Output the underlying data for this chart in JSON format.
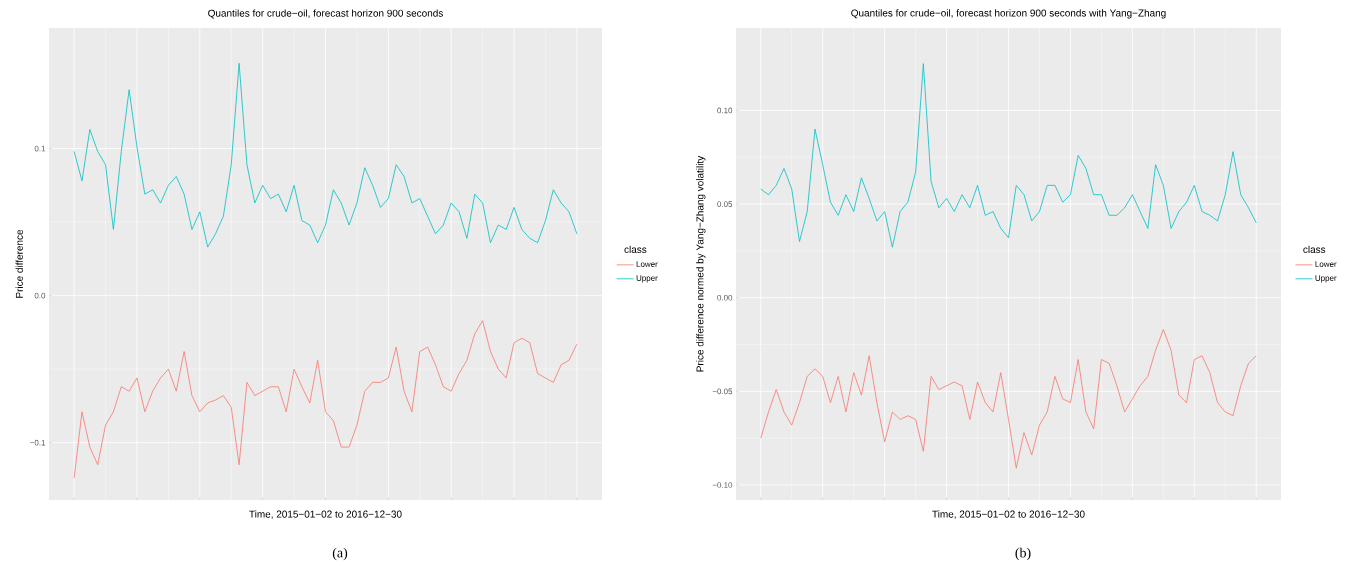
{
  "chart_data": [
    {
      "type": "line",
      "title": "Quantiles for crude−oil, forecast horizon 900 seconds",
      "xlabel": "Time, 2015−01−02 to 2016−12−30",
      "ylabel": "Price difference",
      "legend_title": "class",
      "legend": "right",
      "grid": true,
      "tick_labels": "y",
      "annotations": [
        "(a)"
      ],
      "categories": [
        null,
        null,
        null,
        null,
        null,
        null,
        null,
        null,
        null,
        null,
        null,
        null,
        null,
        null,
        null,
        null,
        null,
        null,
        null,
        null,
        null,
        null,
        null,
        null,
        null,
        null,
        null,
        null,
        null,
        null,
        null,
        null,
        null,
        null,
        null,
        null,
        null,
        null,
        null,
        null,
        null,
        null,
        null,
        null,
        null,
        null,
        null,
        null,
        null,
        null,
        null,
        null,
        null,
        null,
        null,
        null,
        null,
        null,
        null,
        null,
        null,
        null,
        null,
        null,
        null
      ],
      "ylim": [
        -0.139,
        0.182
      ],
      "yticks": [
        {
          "value": -0.1,
          "label": "−0.1"
        },
        {
          "value": 0,
          "label": "0.0"
        },
        {
          "value": 0.1,
          "label": "0.1"
        }
      ],
      "series": [
        {
          "name": "Lower",
          "color": "#f8766d",
          "values": [
            -0.124,
            -0.079,
            -0.103,
            -0.115,
            -0.088,
            -0.079,
            -0.062,
            -0.065,
            -0.056,
            -0.079,
            -0.065,
            -0.056,
            -0.05,
            -0.065,
            -0.038,
            -0.068,
            -0.079,
            -0.073,
            -0.071,
            -0.068,
            -0.076,
            -0.115,
            -0.059,
            -0.068,
            -0.065,
            -0.062,
            -0.062,
            -0.079,
            -0.05,
            -0.062,
            -0.073,
            -0.044,
            -0.079,
            -0.085,
            -0.103,
            -0.103,
            -0.088,
            -0.065,
            -0.059,
            -0.059,
            -0.056,
            -0.035,
            -0.065,
            -0.079,
            -0.038,
            -0.035,
            -0.047,
            -0.062,
            -0.065,
            -0.053,
            -0.044,
            -0.026,
            -0.017,
            -0.038,
            -0.05,
            -0.056,
            -0.032,
            -0.029,
            -0.032,
            -0.053,
            -0.056,
            -0.059,
            -0.047,
            -0.044,
            -0.033
          ]
        },
        {
          "name": "Upper",
          "color": "#00bfc4",
          "values": [
            0.098,
            0.078,
            0.113,
            0.098,
            0.089,
            0.045,
            0.098,
            0.14,
            0.101,
            0.069,
            0.072,
            0.063,
            0.075,
            0.081,
            0.069,
            0.045,
            0.057,
            0.033,
            0.042,
            0.054,
            0.089,
            0.158,
            0.089,
            0.063,
            0.075,
            0.066,
            0.069,
            0.057,
            0.075,
            0.051,
            0.048,
            0.036,
            0.048,
            0.072,
            0.063,
            0.048,
            0.063,
            0.087,
            0.075,
            0.06,
            0.066,
            0.089,
            0.081,
            0.063,
            0.066,
            0.054,
            0.042,
            0.048,
            0.063,
            0.057,
            0.039,
            0.069,
            0.063,
            0.036,
            0.048,
            0.045,
            0.06,
            0.045,
            0.039,
            0.036,
            0.051,
            0.072,
            0.063,
            0.057,
            0.042
          ]
        }
      ]
    },
    {
      "type": "line",
      "title": "Quantiles for crude−oil, forecast horizon 900 seconds with Yang−Zhang",
      "xlabel": "Time, 2015−01−02 to 2016−12−30",
      "ylabel": "Price difference normed by Yang−Zhang volatility",
      "legend_title": "class",
      "legend": "right",
      "grid": true,
      "tick_labels": "y",
      "annotations": [
        "(b)"
      ],
      "categories": [
        null,
        null,
        null,
        null,
        null,
        null,
        null,
        null,
        null,
        null,
        null,
        null,
        null,
        null,
        null,
        null,
        null,
        null,
        null,
        null,
        null,
        null,
        null,
        null,
        null,
        null,
        null,
        null,
        null,
        null,
        null,
        null,
        null,
        null,
        null,
        null,
        null,
        null,
        null,
        null,
        null,
        null,
        null,
        null,
        null,
        null,
        null,
        null,
        null,
        null,
        null,
        null,
        null,
        null,
        null,
        null,
        null,
        null,
        null,
        null,
        null,
        null,
        null,
        null,
        null
      ],
      "ylim": [
        -0.108,
        0.144
      ],
      "yticks": [
        {
          "value": -0.1,
          "label": "−0.10"
        },
        {
          "value": -0.05,
          "label": "−0.05"
        },
        {
          "value": 0,
          "label": "0.00"
        },
        {
          "value": 0.05,
          "label": "0.05"
        },
        {
          "value": 0.1,
          "label": "0.10"
        }
      ],
      "series": [
        {
          "name": "Lower",
          "color": "#f8766d",
          "values": [
            -0.075,
            -0.061,
            -0.049,
            -0.061,
            -0.068,
            -0.056,
            -0.042,
            -0.038,
            -0.042,
            -0.056,
            -0.042,
            -0.061,
            -0.04,
            -0.052,
            -0.031,
            -0.056,
            -0.077,
            -0.061,
            -0.065,
            -0.063,
            -0.065,
            -0.082,
            -0.042,
            -0.049,
            -0.047,
            -0.045,
            -0.047,
            -0.065,
            -0.045,
            -0.056,
            -0.061,
            -0.04,
            -0.065,
            -0.091,
            -0.072,
            -0.084,
            -0.068,
            -0.061,
            -0.042,
            -0.054,
            -0.056,
            -0.033,
            -0.061,
            -0.07,
            -0.033,
            -0.035,
            -0.047,
            -0.061,
            -0.054,
            -0.047,
            -0.042,
            -0.028,
            -0.017,
            -0.028,
            -0.052,
            -0.056,
            -0.033,
            -0.031,
            -0.04,
            -0.056,
            -0.061,
            -0.063,
            -0.047,
            -0.035,
            -0.031
          ]
        },
        {
          "name": "Upper",
          "color": "#00bfc4",
          "values": [
            0.058,
            0.055,
            0.06,
            0.069,
            0.058,
            0.03,
            0.046,
            0.09,
            0.071,
            0.051,
            0.044,
            0.055,
            0.046,
            0.064,
            0.053,
            0.041,
            0.046,
            0.027,
            0.046,
            0.051,
            0.067,
            0.125,
            0.062,
            0.048,
            0.053,
            0.046,
            0.055,
            0.048,
            0.06,
            0.044,
            0.046,
            0.037,
            0.032,
            0.06,
            0.055,
            0.041,
            0.046,
            0.06,
            0.06,
            0.051,
            0.055,
            0.076,
            0.069,
            0.055,
            0.055,
            0.044,
            0.044,
            0.048,
            0.055,
            0.046,
            0.037,
            0.071,
            0.06,
            0.037,
            0.046,
            0.051,
            0.06,
            0.046,
            0.044,
            0.041,
            0.055,
            0.078,
            0.055,
            0.048,
            0.04
          ]
        }
      ]
    }
  ]
}
